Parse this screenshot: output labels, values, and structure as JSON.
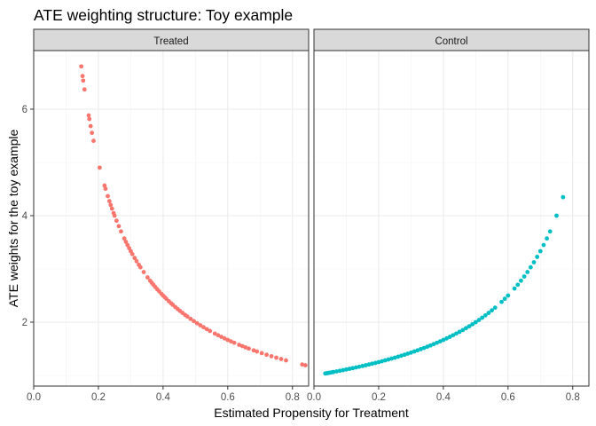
{
  "chart_data": {
    "type": "scatter",
    "title": "ATE weighting structure: Toy example",
    "xlabel": "Estimated Propensity for Treatment",
    "ylabel": "ATE weights for the toy example",
    "xlim": [
      0.0,
      0.85
    ],
    "ylim": [
      0.8,
      7.1
    ],
    "x_ticks": [
      0.0,
      0.2,
      0.4,
      0.6,
      0.8
    ],
    "x_tick_labels": [
      "0.0",
      "0.2",
      "0.4",
      "0.6",
      "0.8"
    ],
    "y_ticks": [
      2,
      4,
      6
    ],
    "y_tick_labels": [
      "2",
      "4",
      "6"
    ],
    "grid": true,
    "legend": "none",
    "facets": [
      {
        "label": "Treated",
        "color": "#f8766d",
        "formula": "1/p",
        "x": [
          0.147,
          0.151,
          0.153,
          0.157,
          0.17,
          0.172,
          0.176,
          0.18,
          0.185,
          0.204,
          0.219,
          0.222,
          0.229,
          0.234,
          0.238,
          0.242,
          0.247,
          0.25,
          0.256,
          0.263,
          0.27,
          0.28,
          0.285,
          0.29,
          0.295,
          0.3,
          0.305,
          0.312,
          0.318,
          0.325,
          0.33,
          0.34,
          0.352,
          0.36,
          0.365,
          0.37,
          0.376,
          0.382,
          0.388,
          0.395,
          0.4,
          0.405,
          0.41,
          0.418,
          0.425,
          0.43,
          0.438,
          0.445,
          0.452,
          0.46,
          0.468,
          0.475,
          0.485,
          0.495,
          0.505,
          0.515,
          0.525,
          0.535,
          0.545,
          0.56,
          0.57,
          0.58,
          0.59,
          0.6,
          0.61,
          0.62,
          0.635,
          0.645,
          0.655,
          0.665,
          0.68,
          0.69,
          0.705,
          0.72,
          0.735,
          0.75,
          0.765,
          0.78,
          0.83,
          0.84
        ]
      },
      {
        "label": "Control",
        "color": "#00bfc4",
        "formula": "1/(1-p)",
        "x": [
          0.035,
          0.04,
          0.045,
          0.05,
          0.055,
          0.06,
          0.07,
          0.08,
          0.09,
          0.1,
          0.11,
          0.12,
          0.13,
          0.14,
          0.15,
          0.16,
          0.17,
          0.18,
          0.19,
          0.2,
          0.21,
          0.22,
          0.23,
          0.24,
          0.25,
          0.26,
          0.27,
          0.28,
          0.29,
          0.3,
          0.31,
          0.32,
          0.33,
          0.34,
          0.35,
          0.36,
          0.37,
          0.38,
          0.39,
          0.4,
          0.41,
          0.42,
          0.43,
          0.44,
          0.45,
          0.46,
          0.47,
          0.48,
          0.49,
          0.5,
          0.51,
          0.52,
          0.53,
          0.54,
          0.55,
          0.56,
          0.58,
          0.59,
          0.6,
          0.62,
          0.63,
          0.64,
          0.65,
          0.66,
          0.67,
          0.68,
          0.69,
          0.7,
          0.71,
          0.72,
          0.73,
          0.75,
          0.77
        ]
      }
    ]
  }
}
